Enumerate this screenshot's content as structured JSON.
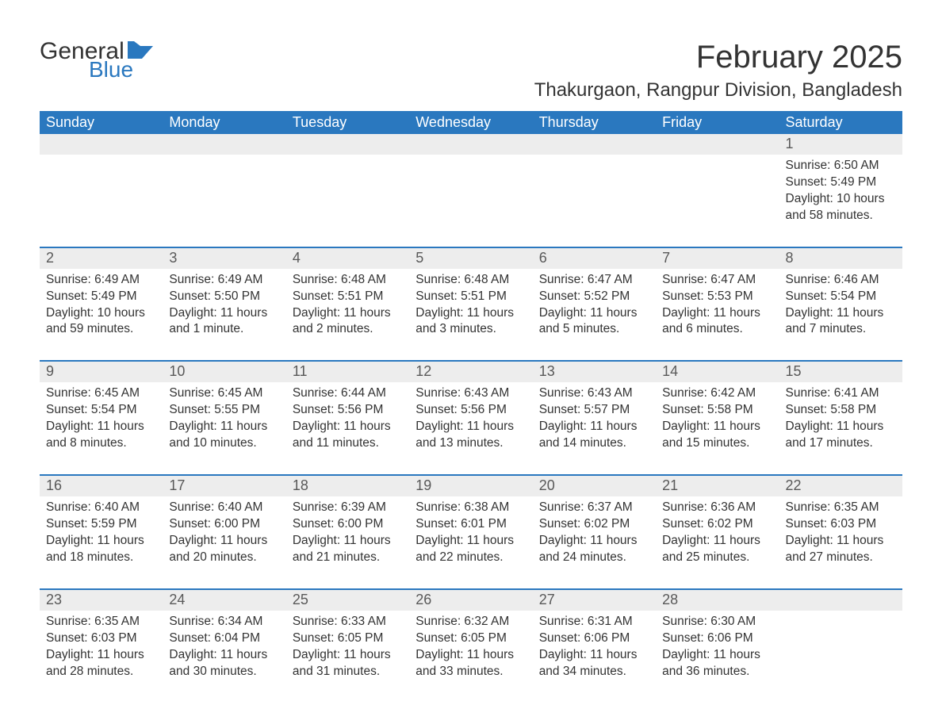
{
  "logo": {
    "word1": "General",
    "word2": "Blue",
    "accent_color": "#2a78bf"
  },
  "title": "February 2025",
  "location": "Thakurgaon, Rangpur Division, Bangladesh",
  "colors": {
    "header_bg": "#2a78bf",
    "header_text": "#ffffff",
    "daynum_bg": "#ededed",
    "daynum_text": "#595959",
    "body_text": "#333333",
    "row_divider": "#2a78bf",
    "page_bg": "#ffffff"
  },
  "typography": {
    "title_fontsize": 40,
    "location_fontsize": 24,
    "header_fontsize": 18,
    "daynum_fontsize": 18,
    "body_fontsize": 15.5,
    "font_family": "Segoe UI / Arial"
  },
  "day_headers": [
    "Sunday",
    "Monday",
    "Tuesday",
    "Wednesday",
    "Thursday",
    "Friday",
    "Saturday"
  ],
  "first_weekday_index": 6,
  "days": [
    {
      "n": 1,
      "sunrise": "6:50 AM",
      "sunset": "5:49 PM",
      "daylight": "10 hours and 58 minutes."
    },
    {
      "n": 2,
      "sunrise": "6:49 AM",
      "sunset": "5:49 PM",
      "daylight": "10 hours and 59 minutes."
    },
    {
      "n": 3,
      "sunrise": "6:49 AM",
      "sunset": "5:50 PM",
      "daylight": "11 hours and 1 minute."
    },
    {
      "n": 4,
      "sunrise": "6:48 AM",
      "sunset": "5:51 PM",
      "daylight": "11 hours and 2 minutes."
    },
    {
      "n": 5,
      "sunrise": "6:48 AM",
      "sunset": "5:51 PM",
      "daylight": "11 hours and 3 minutes."
    },
    {
      "n": 6,
      "sunrise": "6:47 AM",
      "sunset": "5:52 PM",
      "daylight": "11 hours and 5 minutes."
    },
    {
      "n": 7,
      "sunrise": "6:47 AM",
      "sunset": "5:53 PM",
      "daylight": "11 hours and 6 minutes."
    },
    {
      "n": 8,
      "sunrise": "6:46 AM",
      "sunset": "5:54 PM",
      "daylight": "11 hours and 7 minutes."
    },
    {
      "n": 9,
      "sunrise": "6:45 AM",
      "sunset": "5:54 PM",
      "daylight": "11 hours and 8 minutes."
    },
    {
      "n": 10,
      "sunrise": "6:45 AM",
      "sunset": "5:55 PM",
      "daylight": "11 hours and 10 minutes."
    },
    {
      "n": 11,
      "sunrise": "6:44 AM",
      "sunset": "5:56 PM",
      "daylight": "11 hours and 11 minutes."
    },
    {
      "n": 12,
      "sunrise": "6:43 AM",
      "sunset": "5:56 PM",
      "daylight": "11 hours and 13 minutes."
    },
    {
      "n": 13,
      "sunrise": "6:43 AM",
      "sunset": "5:57 PM",
      "daylight": "11 hours and 14 minutes."
    },
    {
      "n": 14,
      "sunrise": "6:42 AM",
      "sunset": "5:58 PM",
      "daylight": "11 hours and 15 minutes."
    },
    {
      "n": 15,
      "sunrise": "6:41 AM",
      "sunset": "5:58 PM",
      "daylight": "11 hours and 17 minutes."
    },
    {
      "n": 16,
      "sunrise": "6:40 AM",
      "sunset": "5:59 PM",
      "daylight": "11 hours and 18 minutes."
    },
    {
      "n": 17,
      "sunrise": "6:40 AM",
      "sunset": "6:00 PM",
      "daylight": "11 hours and 20 minutes."
    },
    {
      "n": 18,
      "sunrise": "6:39 AM",
      "sunset": "6:00 PM",
      "daylight": "11 hours and 21 minutes."
    },
    {
      "n": 19,
      "sunrise": "6:38 AM",
      "sunset": "6:01 PM",
      "daylight": "11 hours and 22 minutes."
    },
    {
      "n": 20,
      "sunrise": "6:37 AM",
      "sunset": "6:02 PM",
      "daylight": "11 hours and 24 minutes."
    },
    {
      "n": 21,
      "sunrise": "6:36 AM",
      "sunset": "6:02 PM",
      "daylight": "11 hours and 25 minutes."
    },
    {
      "n": 22,
      "sunrise": "6:35 AM",
      "sunset": "6:03 PM",
      "daylight": "11 hours and 27 minutes."
    },
    {
      "n": 23,
      "sunrise": "6:35 AM",
      "sunset": "6:03 PM",
      "daylight": "11 hours and 28 minutes."
    },
    {
      "n": 24,
      "sunrise": "6:34 AM",
      "sunset": "6:04 PM",
      "daylight": "11 hours and 30 minutes."
    },
    {
      "n": 25,
      "sunrise": "6:33 AM",
      "sunset": "6:05 PM",
      "daylight": "11 hours and 31 minutes."
    },
    {
      "n": 26,
      "sunrise": "6:32 AM",
      "sunset": "6:05 PM",
      "daylight": "11 hours and 33 minutes."
    },
    {
      "n": 27,
      "sunrise": "6:31 AM",
      "sunset": "6:06 PM",
      "daylight": "11 hours and 34 minutes."
    },
    {
      "n": 28,
      "sunrise": "6:30 AM",
      "sunset": "6:06 PM",
      "daylight": "11 hours and 36 minutes."
    }
  ],
  "labels": {
    "sunrise": "Sunrise:",
    "sunset": "Sunset:",
    "daylight": "Daylight:"
  }
}
